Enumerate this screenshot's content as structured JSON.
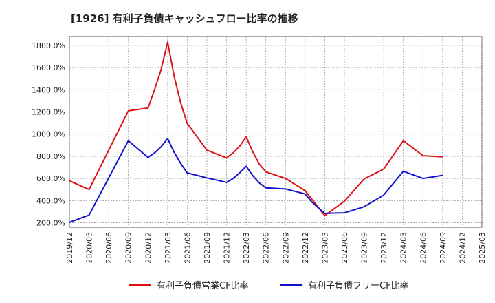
{
  "chart_data": {
    "type": "line",
    "title": "[1926]  有利子負債キャッシュフロー比率の推移",
    "xlabel": "",
    "ylabel": "",
    "ylim": [
      160,
      1880
    ],
    "y_ticks": [
      200,
      400,
      600,
      800,
      1000,
      1200,
      1400,
      1600,
      1800
    ],
    "y_tick_labels": [
      "200.0%",
      "400.0%",
      "600.0%",
      "800.0%",
      "1000.0%",
      "1200.0%",
      "1400.0%",
      "1600.0%",
      "1800.0%"
    ],
    "x_tick_labels": [
      "2019/12",
      "2020/03",
      "2020/06",
      "2020/09",
      "2020/12",
      "2021/03",
      "2021/06",
      "2021/09",
      "2021/12",
      "2022/03",
      "2022/06",
      "2022/09",
      "2022/12",
      "2023/03",
      "2023/06",
      "2023/09",
      "2023/12",
      "2024/03",
      "2024/06",
      "2024/09",
      "2024/12",
      "2025/03"
    ],
    "grid": true,
    "legend_position": "bottom-center",
    "series": [
      {
        "name": "有利子負債営業CF比率",
        "color": "#dd1111",
        "x": [
          "2019/12",
          "2020/03",
          "2020/09",
          "2020/12",
          "2021/01",
          "2021/02",
          "2021/03",
          "2021/04",
          "2021/05",
          "2021/06",
          "2021/09",
          "2021/12",
          "2022/01",
          "2022/02",
          "2022/03",
          "2022/04",
          "2022/05",
          "2022/06",
          "2022/09",
          "2022/12",
          "2023/03",
          "2023/06",
          "2023/09",
          "2023/12",
          "2024/03",
          "2024/06",
          "2024/09"
        ],
        "values": [
          580,
          500,
          1210,
          1235,
          1400,
          1580,
          1830,
          1520,
          1280,
          1095,
          855,
          785,
          830,
          890,
          975,
          840,
          730,
          660,
          600,
          490,
          265,
          395,
          595,
          685,
          940,
          805,
          795
        ]
      },
      {
        "name": "有利子負債フリーCF比率",
        "color": "#1111cc",
        "x": [
          "2019/12",
          "2020/03",
          "2020/09",
          "2020/12",
          "2021/01",
          "2021/02",
          "2021/03",
          "2021/04",
          "2021/05",
          "2021/06",
          "2021/09",
          "2021/12",
          "2022/01",
          "2022/02",
          "2022/03",
          "2022/04",
          "2022/05",
          "2022/06",
          "2022/09",
          "2022/12",
          "2023/01",
          "2023/02",
          "2023/03",
          "2023/06",
          "2023/09",
          "2023/12",
          "2024/03",
          "2024/06",
          "2024/09"
        ],
        "values": [
          205,
          270,
          940,
          790,
          830,
          885,
          960,
          835,
          735,
          650,
          605,
          565,
          600,
          650,
          710,
          625,
          560,
          515,
          505,
          460,
          390,
          335,
          285,
          290,
          345,
          450,
          665,
          600,
          628
        ]
      }
    ]
  }
}
